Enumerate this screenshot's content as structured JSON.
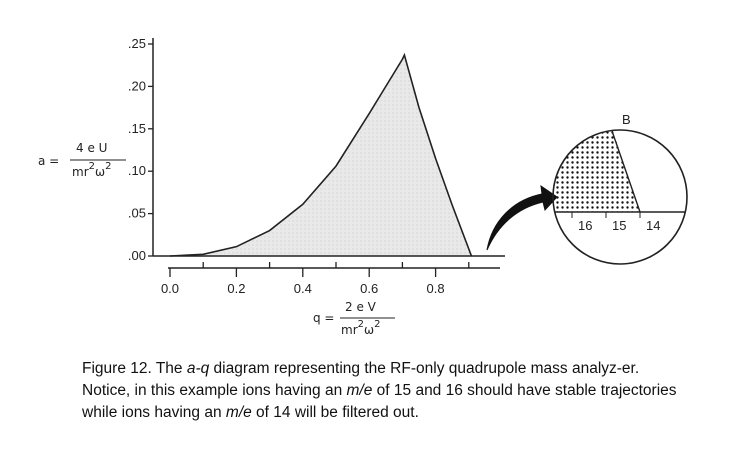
{
  "chart_data": [
    {
      "type": "area",
      "title": "",
      "x_ticks": [
        "0.0",
        "0.2",
        "0.4",
        "0.6",
        "0.8"
      ],
      "y_ticks": [
        ".00",
        ".05",
        ".10",
        ".15",
        ".20",
        ".25"
      ],
      "xlim": [
        0.0,
        0.95
      ],
      "ylim": [
        0.0,
        0.25
      ],
      "xlabel": {
        "lhs": "q =",
        "numerator": "2 e V",
        "denominator_base": "mr",
        "denominator_exp1": "2",
        "denominator_omega": "ω",
        "denominator_exp2": "2"
      },
      "ylabel": {
        "lhs": "a =",
        "numerator": "4 e U",
        "denominator_base": "mr",
        "denominator_exp1": "2",
        "denominator_omega": "ω",
        "denominator_exp2": "2"
      },
      "series": [
        {
          "x": [
            0.0,
            0.1,
            0.2,
            0.3,
            0.4,
            0.5,
            0.6,
            0.7,
            0.706,
            0.75,
            0.8,
            0.85,
            0.908
          ],
          "y": [
            0.0,
            0.002,
            0.011,
            0.03,
            0.061,
            0.106,
            0.168,
            0.232,
            0.237,
            0.175,
            0.115,
            0.06,
            0.0
          ]
        }
      ],
      "grid": false
    },
    {
      "type": "inset-circle",
      "region_label": "B",
      "tick_labels": [
        "16",
        "15",
        "14"
      ],
      "note": "dotted region marks stable ions"
    }
  ],
  "caption": {
    "prefix": "Figure 12. The ",
    "term1": "a-q",
    "mid1": " diagram representing the RF-only quadrupole mass analyz-er. Notice, in this example ions having an ",
    "term2": "m/e",
    "mid2": " of 15 and 16 should have stable trajectories while ions having an ",
    "term3": "m/e",
    "suffix": " of 14 will be filtered out."
  },
  "colors": {
    "ink": "#222222",
    "fill": "#e6e6e6",
    "paper": "#ffffff"
  }
}
